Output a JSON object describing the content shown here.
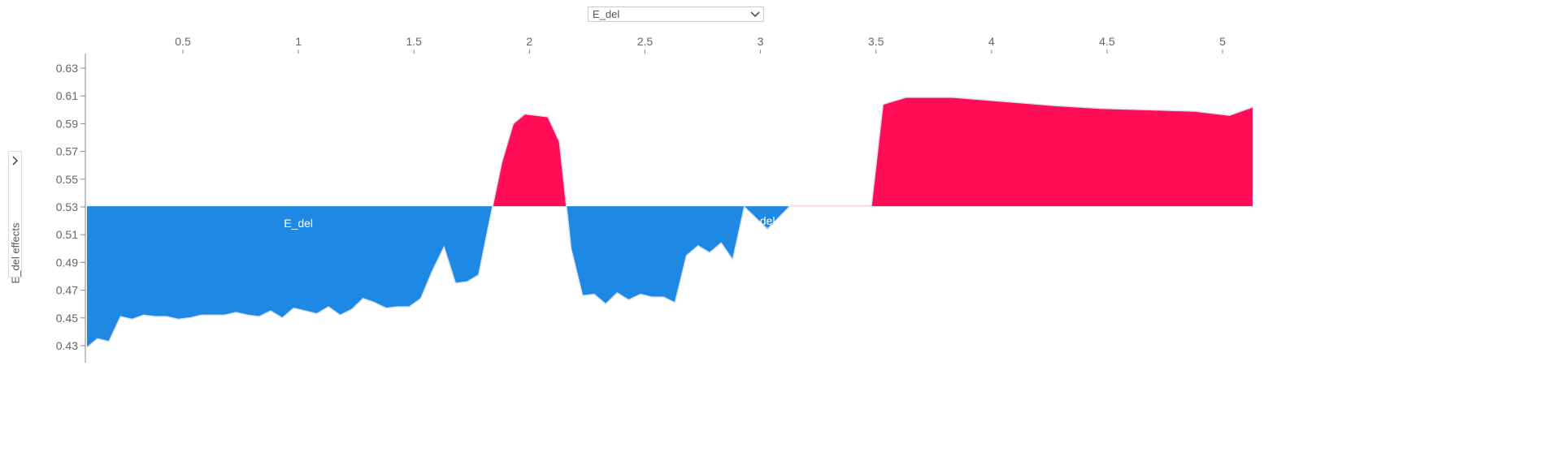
{
  "feature_select": {
    "selected": "E_del"
  },
  "side_panel": {
    "ylabel": "E_del effects"
  },
  "colors": {
    "positive": "#ff0d57",
    "negative": "#1e88e5",
    "axis": "#888888",
    "tick_text": "#666666",
    "outline": "#e0e0f0"
  },
  "chart_data": {
    "type": "area",
    "title": "",
    "xlabel": "",
    "ylabel": "E_del effects",
    "base_value": 0.5305,
    "xlim": [
      0.08,
      5.22
    ],
    "ylim": [
      0.418,
      0.642
    ],
    "x_ticks": [
      0.5,
      1,
      1.5,
      2,
      2.5,
      3,
      3.5,
      4,
      4.5,
      5
    ],
    "x_tick_labels": [
      "0.5",
      "1",
      "1.5",
      "2",
      "2.5",
      "3",
      "3.5",
      "4",
      "4.5",
      "5"
    ],
    "y_ticks": [
      0.43,
      0.45,
      0.47,
      0.49,
      0.51,
      0.53,
      0.55,
      0.57,
      0.59,
      0.61,
      0.63
    ],
    "y_tick_labels": [
      "0.43",
      "0.45",
      "0.47",
      "0.49",
      "0.51",
      "0.53",
      "0.55",
      "0.57",
      "0.59",
      "0.61",
      "0.63"
    ],
    "series": [
      {
        "name": "E_del",
        "x": [
          0.08,
          0.13,
          0.18,
          0.23,
          0.28,
          0.33,
          0.38,
          0.43,
          0.48,
          0.53,
          0.58,
          0.63,
          0.68,
          0.73,
          0.78,
          0.83,
          0.88,
          0.93,
          0.98,
          1.03,
          1.08,
          1.13,
          1.18,
          1.23,
          1.28,
          1.33,
          1.38,
          1.43,
          1.48,
          1.53,
          1.58,
          1.63,
          1.68,
          1.73,
          1.78,
          1.83,
          1.88,
          1.93,
          1.98,
          2.03,
          2.08,
          2.13,
          2.18,
          2.23,
          2.28,
          2.33,
          2.38,
          2.43,
          2.48,
          2.53,
          2.58,
          2.63,
          2.68,
          2.73,
          2.78,
          2.83,
          2.88,
          2.93,
          3.03,
          3.13,
          3.48,
          3.53,
          3.63,
          3.83,
          4.28,
          4.48,
          4.68,
          4.88,
          4.93,
          4.98,
          5.03,
          5.13
        ],
        "y": [
          0.428,
          0.435,
          0.433,
          0.451,
          0.449,
          0.452,
          0.451,
          0.451,
          0.449,
          0.45,
          0.452,
          0.452,
          0.452,
          0.454,
          0.452,
          0.451,
          0.455,
          0.45,
          0.457,
          0.455,
          0.453,
          0.458,
          0.452,
          0.456,
          0.464,
          0.461,
          0.457,
          0.458,
          0.458,
          0.464,
          0.484,
          0.501,
          0.475,
          0.476,
          0.481,
          0.522,
          0.562,
          0.59,
          0.597,
          0.596,
          0.595,
          0.577,
          0.5,
          0.466,
          0.467,
          0.46,
          0.468,
          0.463,
          0.467,
          0.465,
          0.465,
          0.461,
          0.495,
          0.502,
          0.497,
          0.504,
          0.492,
          0.53,
          0.514,
          0.531,
          0.531,
          0.604,
          0.609,
          0.609,
          0.603,
          0.601,
          0.6,
          0.599,
          0.598,
          0.597,
          0.596,
          0.602
        ]
      }
    ],
    "annotations": [
      {
        "text": "E_del",
        "x": 1.0,
        "y": 0.5155
      },
      {
        "text": "E_del",
        "x": 3.0,
        "y": 0.517
      }
    ]
  }
}
